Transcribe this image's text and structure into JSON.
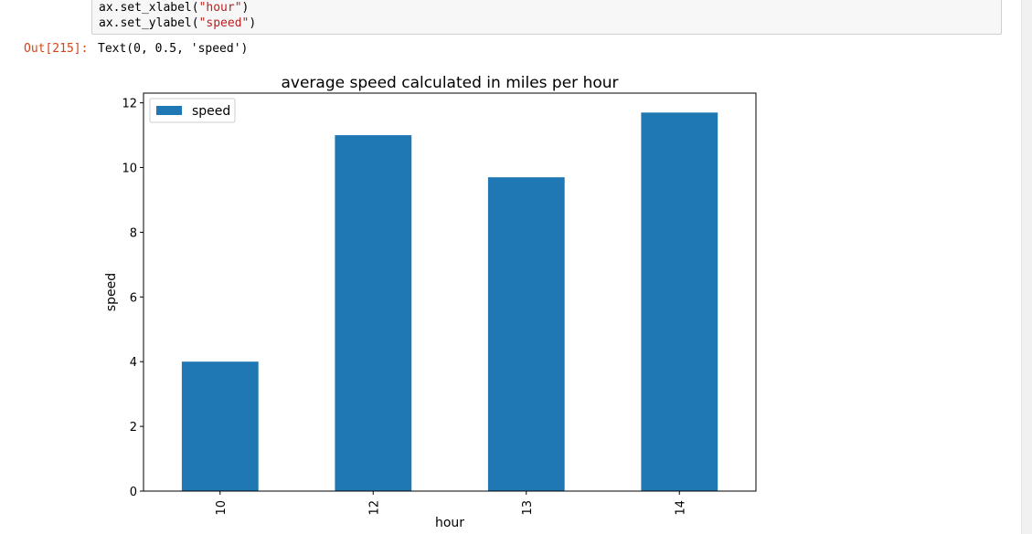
{
  "code": {
    "line1_prefix": "ax.set_xlabel(",
    "line1_arg": "\"hour\"",
    "line1_suffix": ")",
    "line2_prefix": "ax.set_ylabel(",
    "line2_arg": "\"speed\"",
    "line2_suffix": ")"
  },
  "output": {
    "prompt": "Out[215]:",
    "text": "Text(0, 0.5, 'speed')"
  },
  "colors": {
    "bar": "#1f77b4",
    "code_string": "#ba2121",
    "out_prompt": "#d84315"
  },
  "chart_data": {
    "type": "bar",
    "title": "average speed calculated in miles per hour",
    "xlabel": "hour",
    "ylabel": "speed",
    "categories": [
      "10",
      "12",
      "13",
      "14"
    ],
    "series": [
      {
        "name": "speed",
        "values": [
          4.0,
          11.0,
          9.7,
          11.7
        ]
      }
    ],
    "ylim": [
      0,
      12.3
    ],
    "yticks": [
      0,
      2,
      4,
      6,
      8,
      10,
      12
    ],
    "ytick_labels": [
      "0",
      "2",
      "4",
      "6",
      "8",
      "10",
      "12"
    ],
    "legend_position": "top-left",
    "grid": false
  }
}
